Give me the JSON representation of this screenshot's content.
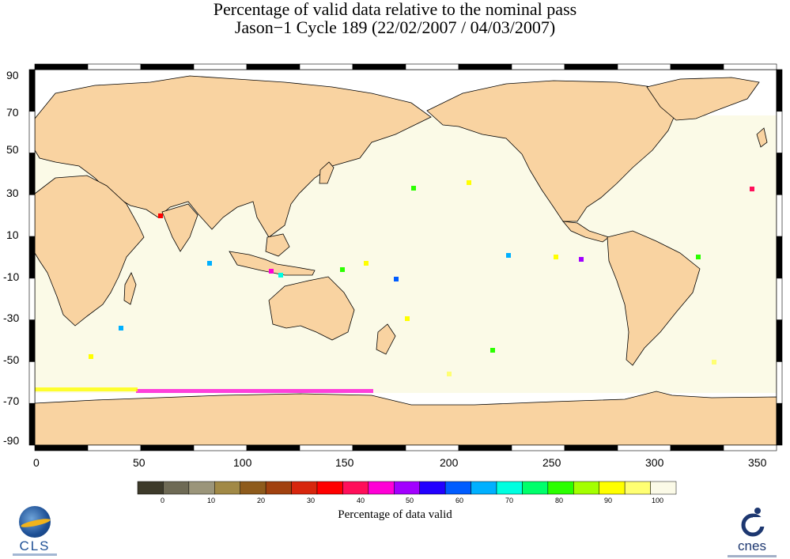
{
  "title": {
    "line1": "Percentage of valid data relative to the nominal pass",
    "line2": "Jason−1 Cycle 189 (22/02/2007 / 04/03/2007)"
  },
  "map": {
    "type": "global gridded data map (equirectangular)",
    "x_axis": {
      "range": [
        0,
        360
      ],
      "tick_labels": [
        "0",
        "50",
        "100",
        "150",
        "200",
        "250",
        "300",
        "350"
      ]
    },
    "y_axis": {
      "range": [
        -90,
        90
      ],
      "tick_labels": [
        "90",
        "70",
        "50",
        "30",
        "10",
        "-10",
        "-30",
        "-50",
        "-70",
        "-90"
      ]
    },
    "frame": "alternating black/white checkered border",
    "land_color": "#f9d3a1",
    "ocean_valid_color": "#fbfae7",
    "no_data_color": "#ffffff"
  },
  "colorbar": {
    "tick_labels": [
      "0",
      "10",
      "20",
      "30",
      "40",
      "50",
      "60",
      "70",
      "80",
      "90",
      "100"
    ],
    "colors": [
      "#3d3a2a",
      "#6e6a55",
      "#9b957a",
      "#a18946",
      "#8e5b1c",
      "#a1410f",
      "#d7260d",
      "#ff0000",
      "#ff0f5a",
      "#ff00d6",
      "#a200ff",
      "#2200ff",
      "#005cff",
      "#00b0ff",
      "#00ffe0",
      "#00ff6b",
      "#2bff00",
      "#a4ff00",
      "#ffff00",
      "#ffff72",
      "#fbfae7"
    ],
    "label": "Percentage of data valid"
  },
  "logos": {
    "left": {
      "name": "CLS"
    },
    "right": {
      "name": "cnes"
    }
  }
}
